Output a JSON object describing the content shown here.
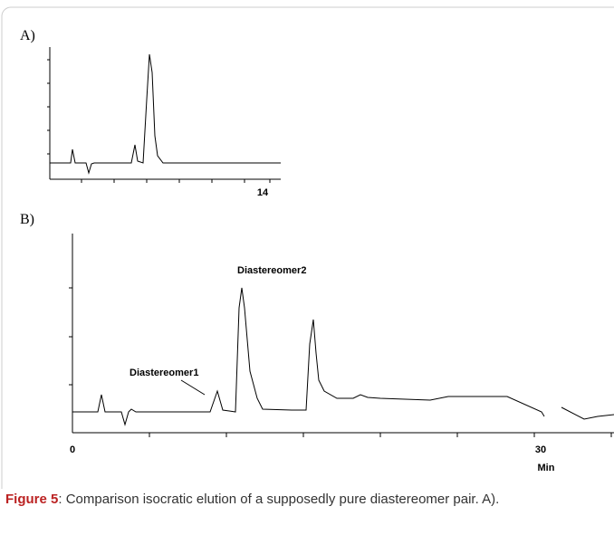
{
  "panels": [
    {
      "label": "A)",
      "x_tick_labels": [
        "14"
      ]
    },
    {
      "label": "B)",
      "x_tick_labels": [
        "0",
        "30"
      ],
      "x_unit": "Min",
      "annotations": [
        "Diastereomer2",
        "Diastereomer1"
      ]
    }
  ],
  "caption": {
    "label": "Figure 5",
    "text": ": Comparison isocratic elution of a supposedly pure diastereomer pair. A)."
  }
}
